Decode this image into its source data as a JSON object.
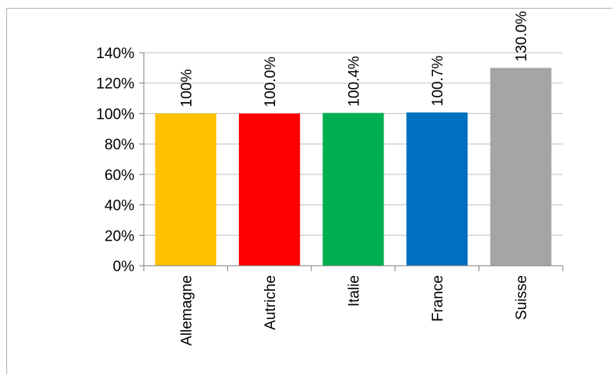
{
  "chart_data": {
    "type": "bar",
    "categories": [
      "Allemagne",
      "Autriche",
      "Italie",
      "France",
      "Suisse"
    ],
    "values": [
      1.0,
      1.0,
      1.004,
      1.007,
      1.3
    ],
    "data_labels": [
      "100%",
      "100.0%",
      "100.4%",
      "100.7%",
      "130.0%"
    ],
    "colors": [
      "#FFC000",
      "#FF0000",
      "#00B050",
      "#0070C0",
      "#A5A5A5"
    ],
    "y_ticks": [
      "0%",
      "20%",
      "40%",
      "60%",
      "80%",
      "100%",
      "120%",
      "140%"
    ],
    "ylim": [
      0,
      1.4
    ],
    "grid": true,
    "title": "",
    "xlabel": "",
    "ylabel": ""
  }
}
